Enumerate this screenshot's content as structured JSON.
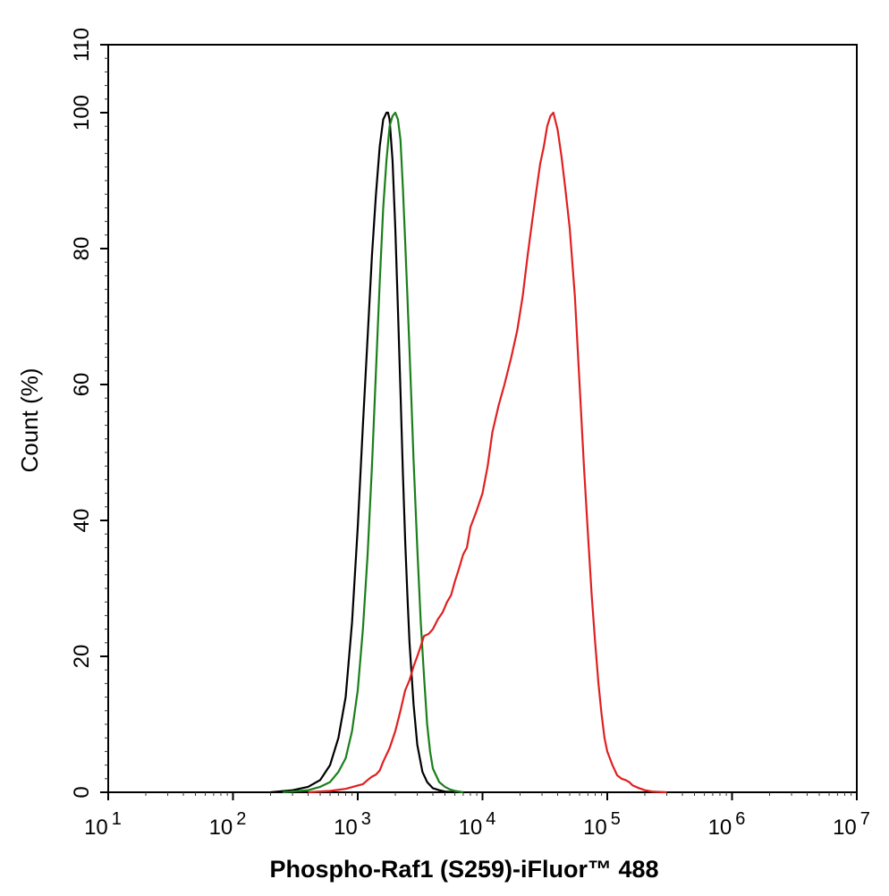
{
  "chart_data": {
    "type": "line",
    "title": "",
    "xlabel": "Phospho-Raf1 (S259)-iFluor™ 488",
    "ylabel": "Count  (%)",
    "x_scale": "log",
    "xlim": [
      10,
      10000000
    ],
    "ylim": [
      0,
      110
    ],
    "x_ticks": [
      {
        "value": 10,
        "base": "10",
        "exp": "1"
      },
      {
        "value": 100,
        "base": "10",
        "exp": "2"
      },
      {
        "value": 1000,
        "base": "10",
        "exp": "3"
      },
      {
        "value": 10000,
        "base": "10",
        "exp": "4"
      },
      {
        "value": 100000,
        "base": "10",
        "exp": "5"
      },
      {
        "value": 1000000,
        "base": "10",
        "exp": "6"
      },
      {
        "value": 10000000,
        "base": "10",
        "exp": "7"
      }
    ],
    "y_ticks": [
      0,
      20,
      40,
      60,
      80,
      100,
      110
    ],
    "grid": false,
    "legend": "none",
    "series": [
      {
        "color": "#000000",
        "x": [
          200,
          300,
          400,
          500,
          600,
          700,
          800,
          900,
          1000,
          1100,
          1200,
          1300,
          1400,
          1500,
          1600,
          1700,
          1750,
          1800,
          1900,
          2000,
          2100,
          2200,
          2300,
          2400,
          2500,
          2600,
          2800,
          3000,
          3300,
          3600,
          4000,
          4500,
          5000,
          6000
        ],
        "y": [
          0,
          0.3,
          0.8,
          1.8,
          4,
          8,
          14,
          25,
          39,
          54,
          67,
          79,
          88,
          95,
          99,
          100,
          100,
          99,
          93,
          83,
          71,
          59,
          47,
          37,
          29,
          22,
          13,
          7,
          3,
          1.5,
          0.6,
          0.3,
          0.1,
          0
        ]
      },
      {
        "color": "#1a7f1a",
        "x": [
          250,
          400,
          500,
          600,
          700,
          800,
          900,
          1000,
          1100,
          1200,
          1300,
          1400,
          1500,
          1600,
          1700,
          1800,
          1900,
          2000,
          2100,
          2200,
          2300,
          2400,
          2500,
          2600,
          2700,
          2800,
          3000,
          3200,
          3400,
          3600,
          3800,
          4000,
          4500,
          5000,
          5500,
          6000,
          7000
        ],
        "y": [
          0,
          0.3,
          0.8,
          1.5,
          3,
          5,
          9,
          15,
          24,
          35,
          48,
          62,
          75,
          86,
          93,
          98,
          99.5,
          100,
          99,
          96,
          89,
          81,
          73,
          65,
          57,
          49,
          36,
          25,
          17,
          10,
          6,
          3.5,
          1.5,
          0.8,
          0.4,
          0.2,
          0
        ]
      },
      {
        "color": "#e02020",
        "x": [
          400,
          600,
          800,
          1000,
          1100,
          1200,
          1300,
          1400,
          1500,
          1600,
          1800,
          2000,
          2200,
          2400,
          2600,
          2800,
          3000,
          3200,
          3400,
          3700,
          4000,
          4400,
          4800,
          5200,
          5600,
          6000,
          6500,
          7000,
          7500,
          8000,
          9000,
          10000,
          11000,
          12000,
          13500,
          15000,
          17000,
          19000,
          21000,
          23000,
          25000,
          27000,
          29000,
          31000,
          33000,
          35000,
          37000,
          40000,
          43000,
          46000,
          50000,
          55000,
          60000,
          65000,
          70000,
          75000,
          80000,
          85000,
          90000,
          95000,
          100000,
          110000,
          120000,
          130000,
          140000,
          150000,
          160000,
          180000,
          200000,
          230000,
          260000,
          300000
        ],
        "y": [
          0,
          0.2,
          0.5,
          1,
          1.2,
          1.8,
          2.3,
          2.6,
          3.2,
          4.5,
          6.5,
          9,
          12,
          15,
          16.5,
          18.5,
          20,
          21.5,
          23,
          23.3,
          24,
          25.5,
          26.5,
          28,
          29,
          31,
          33,
          35,
          36,
          39,
          41.5,
          44,
          48,
          53,
          57,
          60,
          64,
          68,
          73,
          79,
          84,
          88.5,
          92.5,
          95,
          98,
          99.5,
          100,
          97.5,
          93.5,
          89,
          83,
          73,
          60,
          48,
          38,
          29,
          22,
          16,
          11.5,
          8,
          6,
          4,
          2.5,
          2,
          1.8,
          1.5,
          1,
          0.6,
          0.3,
          0.1,
          0.05,
          0
        ]
      }
    ]
  }
}
